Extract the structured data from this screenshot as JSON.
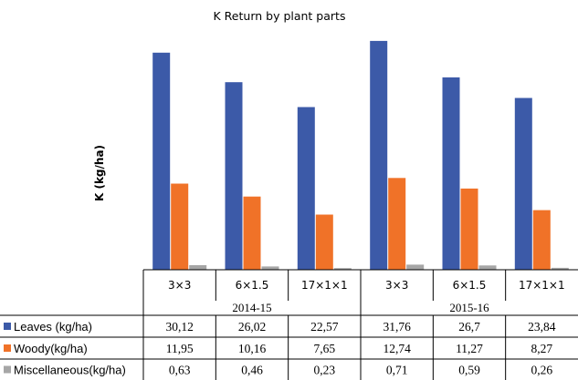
{
  "chart_data": {
    "type": "bar",
    "title": "K Return  by plant parts",
    "ylabel": "K (kg/ha)",
    "groups": [
      {
        "label": "2014-15",
        "categories": [
          "3×3",
          "6×1.5",
          "17×1×1"
        ]
      },
      {
        "label": "2015-16",
        "categories": [
          "3×3",
          "6×1.5",
          "17×1×1"
        ]
      }
    ],
    "categories": [
      "3×3",
      "6×1.5",
      "17×1×1",
      "3×3",
      "6×1.5",
      "17×1×1"
    ],
    "series": [
      {
        "name": "Leaves (kg/ha)",
        "color": "#3c5aa8",
        "values": [
          30.12,
          26.02,
          22.57,
          31.76,
          26.7,
          23.84
        ],
        "labels": [
          "30,12",
          "26,02",
          "22,57",
          "31,76",
          "26,7",
          "23,84"
        ]
      },
      {
        "name": "Woody(kg/ha)",
        "color": "#f07228",
        "values": [
          11.95,
          10.16,
          7.65,
          12.74,
          11.27,
          8.27
        ],
        "labels": [
          "11,95",
          "10,16",
          "7,65",
          "12,74",
          "11,27",
          "8,27"
        ]
      },
      {
        "name": "Miscellaneous(kg/ha)",
        "color": "#a6a6a6",
        "values": [
          0.63,
          0.46,
          0.23,
          0.71,
          0.59,
          0.26
        ],
        "labels": [
          "0,63",
          "0,46",
          "0,23",
          "0,71",
          "0,59",
          "0,26"
        ]
      }
    ],
    "ylim": [
      0,
      32.5
    ],
    "grid": false,
    "legend": "data-table"
  }
}
